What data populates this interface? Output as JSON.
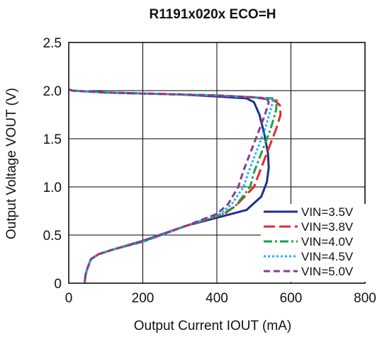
{
  "chart_data": {
    "type": "line",
    "title": "R1191x020x    ECO=H",
    "xlabel": "Output Current IOUT (mA)",
    "ylabel": "Output Voltage VOUT (V)",
    "xlim": [
      0,
      800
    ],
    "ylim": [
      0,
      2.5
    ],
    "x_ticks": [
      "0",
      "200",
      "400",
      "600",
      "800"
    ],
    "y_ticks": [
      "0",
      "0.5",
      "1.0",
      "1.5",
      "2.0",
      "2.5"
    ],
    "grid": true,
    "legend_position": "bottom-right",
    "series": [
      {
        "name": "VIN=3.5V",
        "color": "#1f2f8f",
        "dash": "solid",
        "x": [
          2,
          10,
          100,
          200,
          300,
          400,
          480,
          500,
          515,
          528,
          538,
          540,
          535,
          520,
          480,
          420,
          320,
          200,
          120,
          80,
          60,
          50,
          45,
          43
        ],
        "y": [
          2.01,
          2.0,
          1.98,
          1.97,
          1.96,
          1.94,
          1.92,
          1.88,
          1.75,
          1.55,
          1.35,
          1.2,
          1.05,
          0.9,
          0.76,
          0.7,
          0.6,
          0.44,
          0.35,
          0.3,
          0.25,
          0.15,
          0.08,
          0.0
        ]
      },
      {
        "name": "VIN=3.8V",
        "color": "#e8262b",
        "dash": "long-dash",
        "x": [
          2,
          10,
          100,
          200,
          300,
          400,
          500,
          555,
          570,
          572,
          560,
          545,
          530,
          515,
          500,
          450,
          420,
          320,
          200,
          120,
          80,
          60,
          50,
          45,
          43
        ],
        "y": [
          2.01,
          2.0,
          1.98,
          1.97,
          1.96,
          1.95,
          1.93,
          1.9,
          1.85,
          1.75,
          1.6,
          1.45,
          1.3,
          1.15,
          1.0,
          0.8,
          0.72,
          0.6,
          0.43,
          0.35,
          0.3,
          0.25,
          0.15,
          0.08,
          0.0
        ]
      },
      {
        "name": "VIN=4.0V",
        "color": "#1aa14b",
        "dash": "dash-dot",
        "x": [
          2,
          10,
          100,
          200,
          300,
          400,
          500,
          550,
          562,
          560,
          545,
          530,
          515,
          500,
          490,
          450,
          415,
          320,
          200,
          120,
          80,
          60,
          50,
          45,
          43
        ],
        "y": [
          2.01,
          2.0,
          1.98,
          1.97,
          1.96,
          1.95,
          1.93,
          1.92,
          1.9,
          1.8,
          1.6,
          1.45,
          1.3,
          1.15,
          1.0,
          0.8,
          0.72,
          0.6,
          0.43,
          0.35,
          0.3,
          0.25,
          0.15,
          0.08,
          0.0
        ]
      },
      {
        "name": "VIN=4.5V",
        "color": "#1ab7ea",
        "dash": "dotted",
        "x": [
          2,
          10,
          100,
          200,
          300,
          400,
          500,
          540,
          552,
          545,
          530,
          515,
          500,
          485,
          472,
          440,
          410,
          320,
          200,
          120,
          80,
          60,
          50,
          45,
          43
        ],
        "y": [
          2.01,
          2.0,
          1.98,
          1.97,
          1.96,
          1.95,
          1.93,
          1.92,
          1.9,
          1.8,
          1.6,
          1.45,
          1.3,
          1.15,
          1.0,
          0.82,
          0.72,
          0.6,
          0.43,
          0.35,
          0.3,
          0.25,
          0.15,
          0.08,
          0.0
        ]
      },
      {
        "name": "VIN=5.0V",
        "color": "#8b3a96",
        "dash": "dash",
        "x": [
          2,
          10,
          100,
          200,
          300,
          400,
          500,
          535,
          540,
          530,
          515,
          500,
          485,
          470,
          458,
          430,
          400,
          320,
          200,
          120,
          80,
          60,
          50,
          45,
          43
        ],
        "y": [
          2.01,
          2.0,
          1.98,
          1.97,
          1.96,
          1.95,
          1.93,
          1.92,
          1.88,
          1.75,
          1.6,
          1.45,
          1.3,
          1.15,
          1.0,
          0.82,
          0.72,
          0.6,
          0.44,
          0.35,
          0.3,
          0.25,
          0.15,
          0.08,
          0.0
        ]
      }
    ]
  }
}
